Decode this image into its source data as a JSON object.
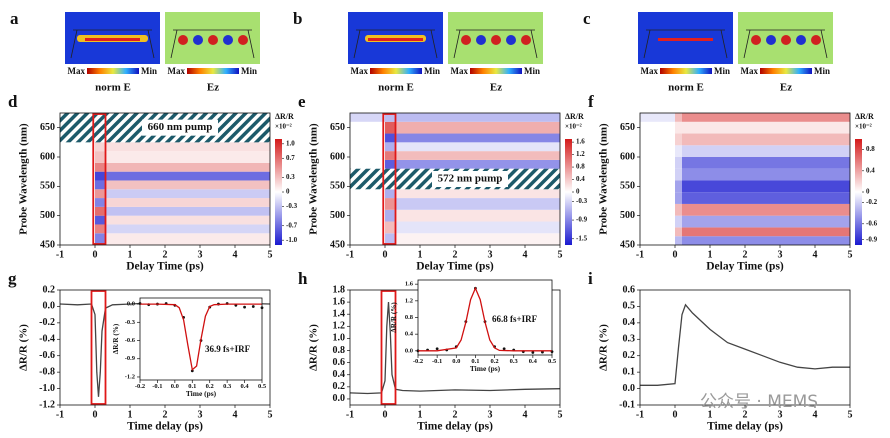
{
  "field_maps": [
    {
      "label": "a",
      "images": [
        {
          "max": "Max",
          "min": "Min",
          "caption": "norm E"
        },
        {
          "max": "Max",
          "min": "Min",
          "caption": "Ez"
        }
      ]
    },
    {
      "label": "b",
      "images": [
        {
          "max": "Max",
          "min": "Min",
          "caption": "norm E"
        },
        {
          "max": "Max",
          "min": "Min",
          "caption": "Ez"
        }
      ]
    },
    {
      "label": "c",
      "images": [
        {
          "max": "Max",
          "min": "Min",
          "caption": "norm E"
        },
        {
          "max": "Max",
          "min": "Min",
          "caption": "Ez"
        }
      ]
    }
  ],
  "watermark": "公众号 · MEMS",
  "chart_data": [
    {
      "type": "heatmap",
      "panel_label": "d",
      "xlabel": "Delay Time (ps)",
      "ylabel": "Probe Wavelength (nm)",
      "xlim": [
        -1,
        5
      ],
      "xticks": [
        -1,
        0,
        1,
        2,
        3,
        4,
        5
      ],
      "ylim": [
        450,
        675
      ],
      "yticks": [
        450,
        500,
        550,
        600,
        650
      ],
      "x": [
        -1,
        0,
        0.3,
        5
      ],
      "y": [
        450,
        470,
        485,
        500,
        515,
        530,
        545,
        560,
        575,
        590,
        610,
        630,
        675
      ],
      "z": [
        [
          0,
          -0.6,
          0.1
        ],
        [
          0,
          0.6,
          -0.2
        ],
        [
          0,
          -0.8,
          0.15
        ],
        [
          0,
          0.7,
          -0.3
        ],
        [
          0,
          -0.6,
          0.2
        ],
        [
          0,
          0.5,
          -0.25
        ],
        [
          0,
          -0.7,
          0.3
        ],
        [
          0,
          -0.9,
          -0.7
        ],
        [
          0,
          0.6,
          0.35
        ],
        [
          0,
          0.3,
          0.1
        ],
        [
          0,
          0.2,
          0.15
        ],
        [
          0,
          0,
          0
        ]
      ],
      "colormap": [
        "#1a1ad0",
        "#ffffff",
        "#d41a1a"
      ],
      "clim": [
        -1.1,
        1.1
      ],
      "colorbar_title": "ΔR/R",
      "colorbar_unit": "×10⁻²",
      "cticks": [
        {
          "value": 1,
          "label": "1.0"
        },
        0.7,
        0.3,
        0,
        -0.3,
        -0.7,
        {
          "value": -1,
          "label": "-1.0"
        }
      ],
      "pump_band": [
        625,
        675
      ],
      "pump_label": "660 nm pump",
      "highlight_x": [
        -0.05,
        0.3
      ]
    },
    {
      "type": "heatmap",
      "panel_label": "e",
      "xlabel": "Delay Time (ps)",
      "ylabel": "Probe Wavelength (nm)",
      "xlim": [
        -1,
        5
      ],
      "xticks": [
        -1,
        0,
        1,
        2,
        3,
        4,
        5
      ],
      "ylim": [
        450,
        675
      ],
      "yticks": [
        450,
        500,
        550,
        600,
        650
      ],
      "x": [
        -1,
        0,
        0.3,
        5
      ],
      "y": [
        450,
        470,
        490,
        510,
        530,
        545,
        560,
        580,
        595,
        610,
        625,
        640,
        660,
        675
      ],
      "z": [
        [
          0,
          -0.5,
          0.1
        ],
        [
          0,
          0.5,
          -0.2
        ],
        [
          0,
          -0.6,
          0.2
        ],
        [
          0,
          0.8,
          -0.4
        ],
        [
          0,
          -0.6,
          0.2
        ],
        [
          0,
          0.4,
          0.1
        ],
        [
          0,
          -0.7,
          -0.3
        ],
        [
          0,
          -1.2,
          -0.8
        ],
        [
          0,
          1.0,
          0.5
        ],
        [
          0,
          -0.6,
          -0.2
        ],
        [
          0,
          -1.3,
          -0.9
        ],
        [
          0,
          1.2,
          0.6
        ],
        [
          -0.3,
          -0.5,
          -0.5
        ]
      ],
      "colormap": [
        "#1a1ad0",
        "#ffffff",
        "#d41a1a"
      ],
      "clim": [
        -1.7,
        1.7
      ],
      "colorbar_title": "ΔR/R",
      "colorbar_unit": "×10⁻²",
      "cticks": [
        1.6,
        1.2,
        0.8,
        0.4,
        0,
        -0.3,
        -0.9,
        -1.5
      ],
      "pump_band": [
        545,
        580
      ],
      "pump_label": "572 nm pump",
      "highlight_x": [
        -0.05,
        0.3
      ]
    },
    {
      "type": "heatmap",
      "panel_label": "f",
      "xlabel": "Delay Time (ps)",
      "ylabel": "Probe Wavelength (nm)",
      "xlim": [
        -1,
        5
      ],
      "xticks": [
        -1,
        0,
        1,
        2,
        3,
        4,
        5
      ],
      "ylim": [
        450,
        675
      ],
      "yticks": [
        450,
        500,
        550,
        600,
        650
      ],
      "x": [
        -1,
        0,
        0.2,
        5
      ],
      "y": [
        450,
        465,
        480,
        500,
        520,
        540,
        560,
        580,
        600,
        620,
        640,
        660,
        675
      ],
      "z": [
        [
          0,
          -0.3,
          -0.5
        ],
        [
          0,
          0.3,
          0.6
        ],
        [
          0,
          -0.2,
          -0.4
        ],
        [
          0,
          0.3,
          0.5
        ],
        [
          0,
          -0.4,
          -0.7
        ],
        [
          0,
          -0.4,
          -0.8
        ],
        [
          0,
          -0.2,
          -0.5
        ],
        [
          0,
          -0.2,
          -0.6
        ],
        [
          0,
          -0.1,
          -0.2
        ],
        [
          0,
          0.2,
          0.3
        ],
        [
          0,
          0.1,
          0.1
        ],
        [
          -0.1,
          0.3,
          0.5
        ]
      ],
      "colormap": [
        "#1a1ad0",
        "#ffffff",
        "#d41a1a"
      ],
      "clim": [
        -1,
        1
      ],
      "colorbar_title": "ΔR/R",
      "colorbar_unit": "×10⁻²",
      "cticks": [
        0.8,
        0.4,
        0,
        -0.2,
        -0.6,
        -0.9
      ]
    },
    {
      "type": "line",
      "panel_label": "g",
      "xlabel": "Time delay (ps)",
      "ylabel": "ΔR/R (%)",
      "xlim": [
        -1,
        5
      ],
      "xticks": [
        -1,
        0,
        1,
        2,
        3,
        4,
        5
      ],
      "ylim": [
        -1.2,
        0.2
      ],
      "yticks": [
        -1.2,
        {
          "value": -1,
          "label": "-1.0"
        },
        -0.8,
        -0.6,
        -0.4,
        -0.2,
        {
          "value": 0,
          "label": "0.0"
        },
        0.2
      ],
      "highlight_x": [
        -0.1,
        0.3
      ],
      "series": [
        {
          "color": "#444444",
          "mode": "line",
          "x": [
            -1,
            -0.5,
            -0.1,
            0,
            0.05,
            0.1,
            0.15,
            0.2,
            0.3,
            0.5,
            1,
            2,
            3,
            4,
            5
          ],
          "values": [
            0.03,
            0.02,
            0.03,
            -0.1,
            -0.8,
            -1.1,
            -0.8,
            -0.3,
            -0.02,
            0.02,
            0.03,
            0.05,
            0.03,
            0.04,
            0.03
          ]
        }
      ]
    },
    {
      "type": "line",
      "panel_label": "h",
      "xlabel": "Time delay (ps)",
      "ylabel": "ΔR/R (%)",
      "xlim": [
        -1,
        5
      ],
      "xticks": [
        -1,
        0,
        1,
        2,
        3,
        4,
        5
      ],
      "ylim": [
        -0.1,
        1.8
      ],
      "yticks": [
        {
          "value": 0,
          "label": "0.0"
        },
        0.2,
        0.4,
        0.6,
        0.8,
        {
          "value": 1,
          "label": "1.0"
        },
        1.2,
        1.4,
        1.6,
        1.8
      ],
      "highlight_x": [
        -0.1,
        0.3
      ],
      "series": [
        {
          "color": "#444444",
          "mode": "line",
          "x": [
            -1,
            -0.5,
            -0.1,
            0,
            0.05,
            0.1,
            0.15,
            0.2,
            0.3,
            0.5,
            1,
            2,
            3,
            4,
            5
          ],
          "values": [
            0.1,
            0.09,
            0.1,
            0.3,
            1.2,
            1.6,
            1.1,
            0.4,
            0.16,
            0.14,
            0.13,
            0.15,
            0.14,
            0.16,
            0.17
          ]
        }
      ]
    },
    {
      "type": "line",
      "panel_label": "i",
      "xlabel": "Time delay (ps)",
      "ylabel": "ΔR/R (%)",
      "xlim": [
        -1,
        5
      ],
      "xticks": [
        -1,
        0,
        1,
        2,
        3,
        4,
        5
      ],
      "ylim": [
        -0.1,
        0.6
      ],
      "yticks": [
        -0.1,
        {
          "value": 0,
          "label": "0.0"
        },
        0.1,
        0.2,
        0.3,
        0.4,
        0.5,
        0.6
      ],
      "series": [
        {
          "color": "#444444",
          "mode": "line",
          "x": [
            -1,
            -0.5,
            0,
            0.1,
            0.2,
            0.3,
            0.5,
            1,
            1.5,
            2,
            2.5,
            3,
            3.5,
            4,
            4.5,
            5
          ],
          "values": [
            0.02,
            0.02,
            0.03,
            0.25,
            0.45,
            0.51,
            0.46,
            0.36,
            0.28,
            0.24,
            0.2,
            0.16,
            0.13,
            0.12,
            0.13,
            0.13
          ]
        }
      ]
    },
    {
      "type": "line",
      "xlabel": "Time (ps)",
      "ylabel": "ΔR/R (%)",
      "annotation": "36.9 fs+IRF",
      "xlim": [
        -0.2,
        0.5
      ],
      "xticks": [
        -0.2,
        -0.1,
        {
          "value": 0,
          "label": "0.0"
        },
        0.1,
        0.2,
        0.3,
        0.4,
        0.5
      ],
      "ylim": [
        -1.25,
        0.1
      ],
      "yticks": [
        {
          "value": 0,
          "label": "0.0"
        },
        -0.3,
        -0.6,
        -0.9,
        -1.2
      ],
      "series": [
        {
          "color": "#111111",
          "mode": "markers",
          "x": [
            -0.2,
            -0.15,
            -0.1,
            -0.05,
            0,
            0.05,
            0.1,
            0.15,
            0.2,
            0.25,
            0.3,
            0.35,
            0.4,
            0.45,
            0.5
          ],
          "values": [
            0.01,
            -0.01,
            0,
            0.01,
            -0.02,
            -0.22,
            -1.1,
            -0.6,
            -0.05,
            0,
            0.01,
            -0.02,
            -0.05,
            -0.04,
            -0.06
          ]
        },
        {
          "color": "#d01010",
          "mode": "line",
          "x": [
            -0.2,
            -0.1,
            0,
            0.025,
            0.05,
            0.075,
            0.1,
            0.125,
            0.15,
            0.175,
            0.2,
            0.225,
            0.3,
            0.4,
            0.5
          ],
          "values": [
            0,
            0,
            -0.01,
            -0.06,
            -0.26,
            -0.68,
            -1.08,
            -1.02,
            -0.58,
            -0.2,
            -0.04,
            -0.01,
            0,
            0,
            0
          ]
        }
      ]
    },
    {
      "type": "line",
      "xlabel": "Time (ps)",
      "ylabel": "ΔR/R (%)",
      "annotation": "66.8 fs+IRF",
      "xlim": [
        -0.2,
        0.5
      ],
      "xticks": [
        -0.2,
        -0.1,
        {
          "value": 0,
          "label": "0.0"
        },
        0.1,
        0.2,
        0.3,
        0.4,
        0.5
      ],
      "ylim": [
        -0.1,
        1.7
      ],
      "yticks": [
        {
          "value": 0,
          "label": "0.0"
        },
        0.4,
        0.8,
        1.2,
        1.6
      ],
      "series": [
        {
          "color": "#111111",
          "mode": "markers",
          "x": [
            -0.2,
            -0.15,
            -0.1,
            -0.05,
            0,
            0.05,
            0.1,
            0.15,
            0.2,
            0.25,
            0.3,
            0.35,
            0.4,
            0.45,
            0.5
          ],
          "values": [
            0,
            0.02,
            0.05,
            0.02,
            0.1,
            0.7,
            1.5,
            0.7,
            0.1,
            0.05,
            0.02,
            -0.02,
            -0.04,
            -0.03,
            -0.02
          ]
        },
        {
          "color": "#d01010",
          "mode": "line",
          "x": [
            -0.2,
            -0.1,
            0,
            0.025,
            0.05,
            0.075,
            0.1,
            0.125,
            0.15,
            0.175,
            0.2,
            0.225,
            0.3,
            0.4,
            0.5
          ],
          "values": [
            0,
            0,
            0.07,
            0.26,
            0.69,
            1.23,
            1.5,
            1.23,
            0.69,
            0.26,
            0.07,
            0.01,
            0,
            0,
            0
          ]
        }
      ]
    }
  ]
}
